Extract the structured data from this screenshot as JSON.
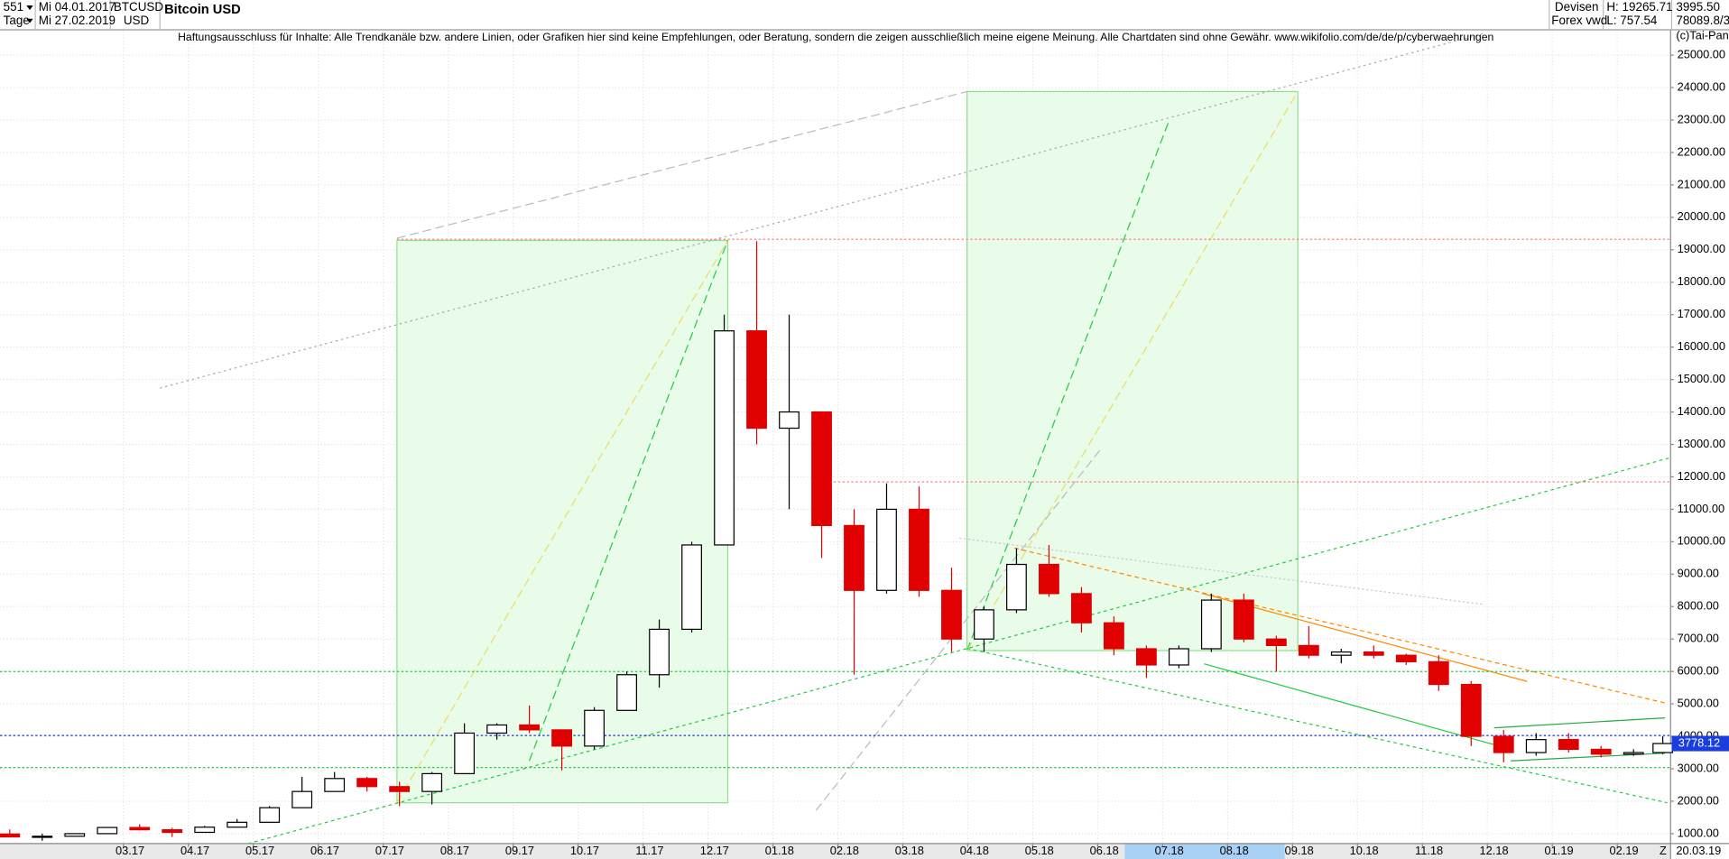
{
  "header": {
    "bars": "551",
    "period": "Tage",
    "start": "Mi 04.01.2017",
    "end": "Mi 27.02.2019",
    "symbol": "BTCUSD",
    "currency": "USD",
    "market": "Devisen",
    "source": "Forex vwd",
    "high": "H: 19265.71",
    "low": "L: 757.54",
    "value1": "3995.50",
    "value2": "78089.8/3"
  },
  "chart_data": {
    "type": "candlestick",
    "title": "Bitcoin USD",
    "annotation": "Haftungsausschluss für Inhalte: Alle Trendkanäle bzw. andere Linien, oder Grafiken hier sind keine Empfehlungen, oder Beratung, sondern die zeigen ausschließlich meine eigene Meinung. Alle Chartdaten sind ohne Gewähr.  www.wikifolio.com/de/de/p/cyberwaehrungen",
    "copyright": "(c)Tai-Pan",
    "x": [
      0.25,
      0.75,
      1.25,
      1.75,
      2.25,
      2.75,
      3.25,
      3.75,
      4.25,
      4.75,
      5.25,
      5.75,
      6.25,
      6.75,
      7.25,
      7.75,
      8.25,
      8.75,
      9.25,
      9.75,
      10.25,
      10.75,
      11.25,
      11.75,
      12.25,
      12.75,
      13.25,
      13.75,
      14.25,
      14.75,
      15.25,
      15.75,
      16.25,
      16.75,
      17.25,
      17.75,
      18.25,
      18.75,
      19.25,
      19.75,
      20.25,
      20.75,
      21.25,
      21.75,
      22.25,
      22.75,
      23.25,
      23.75,
      24.25,
      24.75,
      25.25,
      25.7
    ],
    "open": [
      990,
      900,
      920,
      1000,
      1190,
      1120,
      1040,
      1200,
      1350,
      1800,
      2300,
      2700,
      2450,
      2300,
      2850,
      4100,
      4350,
      4200,
      3700,
      4800,
      5900,
      7300,
      9900,
      16500,
      13500,
      14000,
      10500,
      8500,
      11000,
      8500,
      7000,
      7900,
      9300,
      8400,
      7500,
      6700,
      6200,
      6700,
      8200,
      7000,
      6800,
      6500,
      6600,
      6500,
      6300,
      5600,
      4000,
      3500,
      3900,
      3600,
      3450,
      3500
    ],
    "high": [
      1130,
      1000,
      1010,
      1200,
      1290,
      1180,
      1240,
      1450,
      1850,
      2750,
      2900,
      2750,
      2600,
      2900,
      4400,
      4400,
      4950,
      4200,
      4900,
      6000,
      7600,
      10000,
      17000,
      19266,
      17000,
      14000,
      11000,
      11800,
      11700,
      9200,
      8000,
      9800,
      9900,
      8600,
      7700,
      6800,
      6800,
      8400,
      8400,
      7100,
      7400,
      6700,
      6800,
      6550,
      6500,
      5700,
      4200,
      4100,
      4100,
      3700,
      3600,
      4000
    ],
    "low": [
      890,
      780,
      920,
      990,
      1100,
      900,
      1040,
      1190,
      1340,
      1800,
      2300,
      2300,
      1850,
      1900,
      2850,
      3900,
      4100,
      2950,
      3600,
      4800,
      5500,
      7200,
      9900,
      13000,
      11000,
      9500,
      5900,
      8400,
      8300,
      6600,
      6600,
      7800,
      8300,
      7200,
      6500,
      5800,
      6100,
      6600,
      6900,
      6000,
      6400,
      6250,
      6400,
      6200,
      5400,
      3700,
      3200,
      3400,
      3500,
      3350,
      3400,
      3450
    ],
    "close": [
      900,
      920,
      1000,
      1190,
      1120,
      1040,
      1200,
      1350,
      1800,
      2300,
      2700,
      2450,
      2300,
      2850,
      4100,
      4350,
      4200,
      3700,
      4800,
      5900,
      7300,
      9900,
      16500,
      13500,
      14000,
      10500,
      8500,
      11000,
      8500,
      7000,
      7900,
      9300,
      8400,
      7500,
      6700,
      6200,
      6700,
      8200,
      7000,
      6800,
      6500,
      6600,
      6500,
      6300,
      5600,
      4000,
      3500,
      3900,
      3600,
      3450,
      3500,
      3778.12
    ],
    "up_color": "#000000",
    "down_color": "#e00000",
    "xlim": [
      0.1,
      25.82
    ],
    "xticks": [
      {
        "value": 2,
        "label": "03.17"
      },
      {
        "value": 3,
        "label": "04.17"
      },
      {
        "value": 4,
        "label": "05.17"
      },
      {
        "value": 5,
        "label": "06.17"
      },
      {
        "value": 6,
        "label": "07.17"
      },
      {
        "value": 7,
        "label": "08.17"
      },
      {
        "value": 8,
        "label": "09.17"
      },
      {
        "value": 9,
        "label": "10.17"
      },
      {
        "value": 10,
        "label": "11.17"
      },
      {
        "value": 11,
        "label": "12.17"
      },
      {
        "value": 12,
        "label": "01.18"
      },
      {
        "value": 13,
        "label": "02.18"
      },
      {
        "value": 14,
        "label": "03.18"
      },
      {
        "value": 15,
        "label": "04.18"
      },
      {
        "value": 16,
        "label": "05.18"
      },
      {
        "value": 17,
        "label": "06.18"
      },
      {
        "value": 18,
        "label": "07.18"
      },
      {
        "value": 19,
        "label": "08.18"
      },
      {
        "value": 20,
        "label": "09.18"
      },
      {
        "value": 21,
        "label": "10.18"
      },
      {
        "value": 22,
        "label": "11.18"
      },
      {
        "value": 23,
        "label": "12.18"
      },
      {
        "value": 24,
        "label": "01.19"
      },
      {
        "value": 25,
        "label": "02.19"
      }
    ],
    "ylim": [
      694,
      25748
    ],
    "yticks": [
      {
        "value": 1000,
        "label": "1000.00"
      },
      {
        "value": 2000,
        "label": "2000.00"
      },
      {
        "value": 3000,
        "label": "3000.00"
      },
      {
        "value": 4000,
        "label": "4000.00"
      },
      {
        "value": 5000,
        "label": "5000.00"
      },
      {
        "value": 6000,
        "label": "6000.00"
      },
      {
        "value": 7000,
        "label": "7000.00"
      },
      {
        "value": 8000,
        "label": "8000.00"
      },
      {
        "value": 9000,
        "label": "9000.00"
      },
      {
        "value": 10000,
        "label": "10000.00"
      },
      {
        "value": 11000,
        "label": "11000.00"
      },
      {
        "value": 12000,
        "label": "12000.00"
      },
      {
        "value": 13000,
        "label": "13000.00"
      },
      {
        "value": 14000,
        "label": "14000.00"
      },
      {
        "value": 15000,
        "label": "15000.00"
      },
      {
        "value": 16000,
        "label": "16000.00"
      },
      {
        "value": 17000,
        "label": "17000.00"
      },
      {
        "value": 18000,
        "label": "18000.00"
      },
      {
        "value": 19000,
        "label": "19000.00"
      },
      {
        "value": 20000,
        "label": "20000.00"
      },
      {
        "value": 21000,
        "label": "21000.00"
      },
      {
        "value": 22000,
        "label": "22000.00"
      },
      {
        "value": 23000,
        "label": "23000.00"
      },
      {
        "value": 24000,
        "label": "24000.00"
      },
      {
        "value": 25000,
        "label": "25000.00"
      }
    ],
    "grid": true,
    "last_price": {
      "value": 3778.12,
      "label": "3778.12"
    },
    "axis_marker": "Z",
    "axis_end_label": "20.03.19"
  }
}
